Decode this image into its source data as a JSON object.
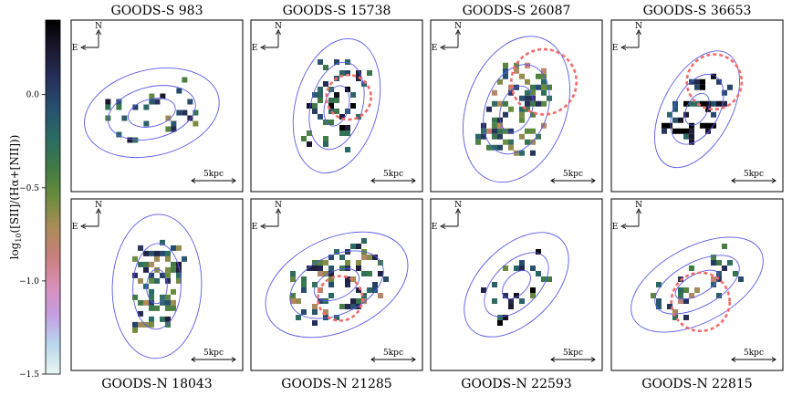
{
  "chart_data": {
    "type": "heatmap",
    "colorbar": {
      "label": "log10([SII]/(Hα+[NII]))",
      "label_base": "log",
      "label_sub": "10",
      "label_rest": "([SII]/(Hα+[NII]))",
      "vmin": -1.5,
      "vmax": 0.4,
      "ticks": [
        {
          "value": 0.0,
          "label": "0.0"
        },
        {
          "value": -0.5,
          "label": "−0.5"
        },
        {
          "value": -1.0,
          "label": "−1.0"
        },
        {
          "value": -1.5,
          "label": "−1.5"
        }
      ],
      "colormap": "cubehelix_r",
      "colors": [
        "#e8f7f0",
        "#b8d7ee",
        "#c59ee2",
        "#d98fb9",
        "#c87f7a",
        "#a98c58",
        "#6a8c3d",
        "#3f7a45",
        "#2b6b63",
        "#27506f",
        "#26305a",
        "#1c1830",
        "#000000"
      ]
    },
    "axis_labels": {
      "north": "N",
      "east": "E",
      "scalebar": "5kpc"
    },
    "panels": [
      {
        "title": "GOODS-S 983",
        "ellipses": [
          {
            "a": 0.14,
            "b": 0.08,
            "angle": 14
          },
          {
            "a": 0.26,
            "b": 0.15,
            "angle": 14
          },
          {
            "a": 0.4,
            "b": 0.25,
            "angle": 14
          }
        ],
        "cx": 0.47,
        "cy": 0.54,
        "overlay": null,
        "nspax": 28,
        "vmean": -0.2,
        "seed": 3
      },
      {
        "title": "GOODS-S 15738",
        "ellipses": [
          {
            "a": 0.12,
            "b": 0.07,
            "angle": 75
          },
          {
            "a": 0.26,
            "b": 0.15,
            "angle": 75
          },
          {
            "a": 0.4,
            "b": 0.24,
            "angle": 75
          }
        ],
        "cx": 0.5,
        "cy": 0.5,
        "overlay": {
          "cx": 0.57,
          "cy": 0.45,
          "r": 0.13
        },
        "nspax": 45,
        "vmean": 0.05,
        "seed": 7
      },
      {
        "title": "GOODS-S 26087",
        "ellipses": [
          {
            "a": 0.14,
            "b": 0.09,
            "angle": 70
          },
          {
            "a": 0.27,
            "b": 0.18,
            "angle": 70
          },
          {
            "a": 0.44,
            "b": 0.29,
            "angle": 70
          }
        ],
        "cx": 0.5,
        "cy": 0.52,
        "overlay": {
          "cx": 0.66,
          "cy": 0.36,
          "r": 0.19
        },
        "nspax": 75,
        "vmean": -0.35,
        "seed": 11
      },
      {
        "title": "GOODS-S 36653",
        "ellipses": [
          {
            "a": 0.1,
            "b": 0.06,
            "angle": 62
          },
          {
            "a": 0.22,
            "b": 0.13,
            "angle": 62
          },
          {
            "a": 0.37,
            "b": 0.2,
            "angle": 62
          }
        ],
        "cx": 0.5,
        "cy": 0.52,
        "overlay": {
          "cx": 0.6,
          "cy": 0.36,
          "r": 0.16
        },
        "nspax": 40,
        "vmean": 0.2,
        "seed": 19
      },
      {
        "title": "GOODS-N 18043",
        "ellipses": [
          {
            "a": 0.1,
            "b": 0.06,
            "angle": 88
          },
          {
            "a": 0.25,
            "b": 0.14,
            "angle": 88
          },
          {
            "a": 0.42,
            "b": 0.26,
            "angle": 88
          }
        ],
        "cx": 0.5,
        "cy": 0.51,
        "overlay": null,
        "nspax": 60,
        "vmean": -0.25,
        "seed": 23
      },
      {
        "title": "GOODS-N 21285",
        "ellipses": [
          {
            "a": 0.14,
            "b": 0.08,
            "angle": 25
          },
          {
            "a": 0.29,
            "b": 0.17,
            "angle": 25
          },
          {
            "a": 0.44,
            "b": 0.27,
            "angle": 25
          }
        ],
        "cx": 0.5,
        "cy": 0.5,
        "overlay": {
          "cx": 0.52,
          "cy": 0.58,
          "r": 0.13
        },
        "nspax": 70,
        "vmean": -0.3,
        "seed": 29
      },
      {
        "title": "GOODS-N 22593",
        "ellipses": [
          {
            "a": 0.1,
            "b": 0.06,
            "angle": 45
          },
          {
            "a": 0.23,
            "b": 0.13,
            "angle": 45
          },
          {
            "a": 0.37,
            "b": 0.22,
            "angle": 45
          }
        ],
        "cx": 0.5,
        "cy": 0.5,
        "overlay": null,
        "nspax": 22,
        "vmean": -0.1,
        "seed": 31
      },
      {
        "title": "GOODS-N 22815",
        "ellipses": [
          {
            "a": 0.14,
            "b": 0.06,
            "angle": 28
          },
          {
            "a": 0.27,
            "b": 0.13,
            "angle": 28
          },
          {
            "a": 0.42,
            "b": 0.22,
            "angle": 28
          }
        ],
        "cx": 0.5,
        "cy": 0.5,
        "overlay": {
          "cx": 0.52,
          "cy": 0.6,
          "r": 0.17
        },
        "nspax": 30,
        "vmean": -0.35,
        "seed": 37
      }
    ]
  }
}
